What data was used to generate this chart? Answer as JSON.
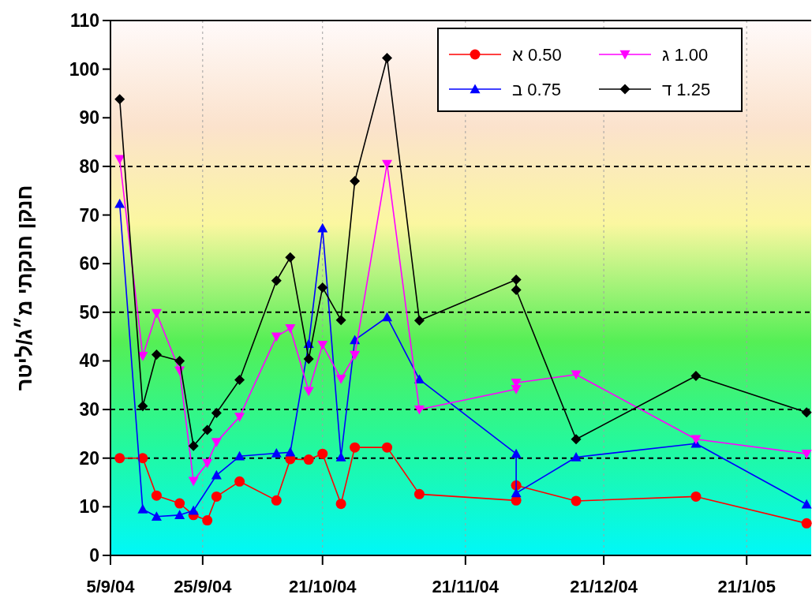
{
  "chart_data": {
    "type": "line",
    "ylabel": "חנקן חנקתי  מ״ג/ליטר",
    "xlim": [
      "2004-09-05",
      "2005-02-04"
    ],
    "ylim": [
      0,
      110
    ],
    "yticks": [
      0,
      10,
      20,
      30,
      40,
      50,
      60,
      70,
      80,
      90,
      100,
      110
    ],
    "xticks": [
      {
        "value": "2004-09-05",
        "label": "5/9/04"
      },
      {
        "value": "2004-09-25",
        "label": "25/9/04"
      },
      {
        "value": "2004-10-21",
        "label": "21/10/04"
      },
      {
        "value": "2004-11-21",
        "label": "21/11/04"
      },
      {
        "value": "2004-12-21",
        "label": "21/12/04"
      },
      {
        "value": "2005-01-21",
        "label": "21/1/05"
      }
    ],
    "grid": "x",
    "legend": "top right",
    "ref_lines": [
      {
        "axis": "y",
        "value": 20,
        "color": "#000000",
        "line_style": "dashed"
      },
      {
        "axis": "y",
        "value": 30,
        "color": "#000000",
        "line_style": "dashed"
      },
      {
        "axis": "y",
        "value": 50,
        "color": "#000000",
        "line_style": "dashed"
      },
      {
        "axis": "y",
        "value": 80,
        "color": "#000000",
        "line_style": "dashed"
      }
    ],
    "series": [
      {
        "name": "א 0.50",
        "color": "#ff0000",
        "marker": "circle",
        "x": [
          "2004-09-07",
          "2004-09-12",
          "2004-09-15",
          "2004-09-20",
          "2004-09-23",
          "2004-09-26",
          "2004-09-28",
          "2004-10-03",
          "2004-10-11",
          "2004-10-14",
          "2004-10-18",
          "2004-10-21",
          "2004-10-25",
          "2004-10-28",
          "2004-11-04",
          "2004-11-11",
          "2004-12-02",
          "2004-12-02",
          "2004-12-15",
          "2005-01-10",
          "2005-02-03"
        ],
        "values": [
          20,
          20,
          12.3,
          10.7,
          8.3,
          7.2,
          12.1,
          15.2,
          11.3,
          19.8,
          19.7,
          20.9,
          10.6,
          22.2,
          22.2,
          12.6,
          11.3,
          14.4,
          11.2,
          12.1,
          6.6
        ]
      },
      {
        "name": "ב 0.75",
        "color": "#0000ff",
        "marker": "triangle",
        "x": [
          "2004-09-07",
          "2004-09-12",
          "2004-09-15",
          "2004-09-20",
          "2004-09-23",
          "2004-09-28",
          "2004-10-03",
          "2004-10-11",
          "2004-10-14",
          "2004-10-18",
          "2004-10-21",
          "2004-10-25",
          "2004-10-28",
          "2004-11-04",
          "2004-11-11",
          "2004-12-02",
          "2004-12-02",
          "2004-12-15",
          "2005-01-10",
          "2005-02-03"
        ],
        "values": [
          72.3,
          9.5,
          8.0,
          8.3,
          9.2,
          16.5,
          20.4,
          21.0,
          21.2,
          43.5,
          67.3,
          20.2,
          44.3,
          49.0,
          36.2,
          20.9,
          12.8,
          20.2,
          23.0,
          10.5
        ]
      },
      {
        "name": "ג 1.00",
        "color": "#ff00ff",
        "marker": "triangle-down",
        "x": [
          "2004-09-07",
          "2004-09-12",
          "2004-09-15",
          "2004-09-20",
          "2004-09-23",
          "2004-09-26",
          "2004-09-28",
          "2004-10-03",
          "2004-10-11",
          "2004-10-14",
          "2004-10-18",
          "2004-10-21",
          "2004-10-25",
          "2004-10-28",
          "2004-11-04",
          "2004-11-11",
          "2004-12-02",
          "2004-12-02",
          "2004-12-15",
          "2005-01-10",
          "2005-02-03"
        ],
        "values": [
          81.5,
          41,
          49.8,
          38,
          15.3,
          19,
          23.3,
          28.5,
          45,
          46.7,
          33.8,
          43.3,
          36.3,
          41.2,
          80.5,
          30.0,
          34.2,
          35.5,
          37.2,
          23.9,
          20.9
        ]
      },
      {
        "name": "ד 1.25",
        "color": "#000000",
        "marker": "diamond",
        "x": [
          "2004-09-07",
          "2004-09-12",
          "2004-09-15",
          "2004-09-20",
          "2004-09-23",
          "2004-09-26",
          "2004-09-28",
          "2004-10-03",
          "2004-10-11",
          "2004-10-14",
          "2004-10-18",
          "2004-10-21",
          "2004-10-25",
          "2004-10-28",
          "2004-11-04",
          "2004-11-11",
          "2004-12-02",
          "2004-12-02",
          "2004-12-15",
          "2005-01-10",
          "2005-02-03"
        ],
        "values": [
          93.8,
          30.7,
          41.3,
          40,
          22.5,
          25.8,
          29.3,
          36.1,
          56.5,
          61.3,
          40.4,
          55.1,
          48.4,
          77,
          102.3,
          48.3,
          56.7,
          54.6,
          23.9,
          36.9,
          29.4
        ]
      }
    ]
  }
}
